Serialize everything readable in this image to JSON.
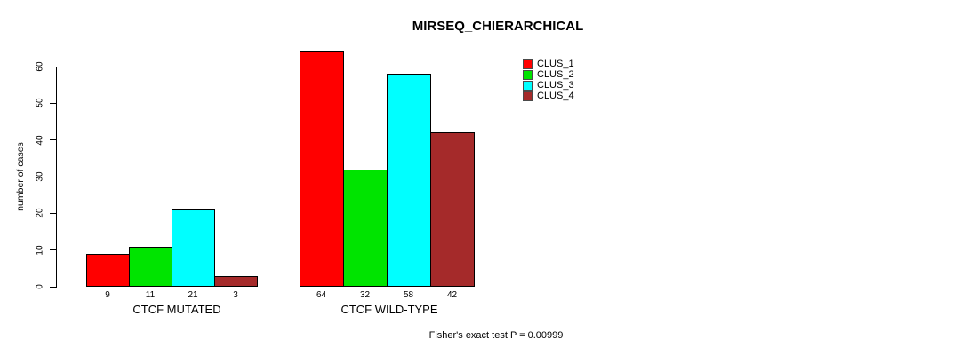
{
  "chart_data": {
    "type": "bar",
    "title": "MIRSEQ_CHIERARCHICAL",
    "ylabel": "number of cases",
    "xlabel": "",
    "ylim": [
      0,
      60
    ],
    "yticks": [
      0,
      10,
      20,
      30,
      40,
      50,
      60
    ],
    "grid": false,
    "legend_position": "top-right",
    "categories": [
      "CTCF MUTATED",
      "CTCF WILD-TYPE"
    ],
    "series": [
      {
        "name": "CLUS_1",
        "color": "#ff0000",
        "values": [
          9,
          64
        ]
      },
      {
        "name": "CLUS_2",
        "color": "#00e400",
        "values": [
          11,
          32
        ]
      },
      {
        "name": "CLUS_3",
        "color": "#00ffff",
        "values": [
          21,
          58
        ]
      },
      {
        "name": "CLUS_4",
        "color": "#a52a2a",
        "values": [
          3,
          42
        ]
      }
    ],
    "bar_value_labels": [
      [
        "9",
        "11",
        "21",
        "3"
      ],
      [
        "64",
        "32",
        "58",
        "42"
      ]
    ],
    "annotation": "Fisher's exact test P = 0.00999",
    "colors": {
      "background": "#ffffff",
      "axis": "#000000",
      "text": "#000000",
      "bar_border": "#000000"
    }
  }
}
